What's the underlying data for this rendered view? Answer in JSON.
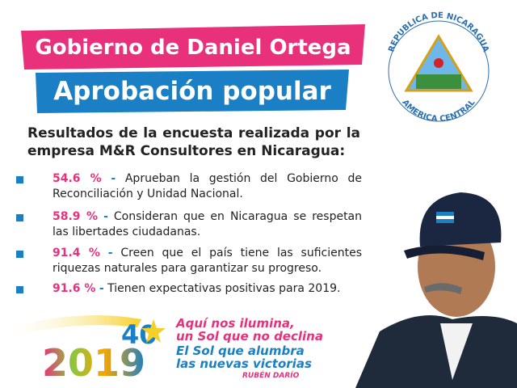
{
  "header": {
    "title": "Gobierno de Daniel Ortega",
    "subtitle": "Aprobación popular"
  },
  "intro": "Resultados de la encuesta realizada por la empresa M&R Consultores en Nicaragua:",
  "items": [
    {
      "percent": "54.6 %",
      "separator": "-",
      "text": "Aprueban la gestión del Gobierno de Reconciliación y Unidad Nacional."
    },
    {
      "percent": "58.9 %",
      "separator": "-",
      "text": "Consideran que en Nicaragua se respetan las libertades ciudadanas."
    },
    {
      "percent": "91.4 %",
      "separator": "-",
      "text": "Creen que el país tiene las suficientes riquezas naturales para garantizar su progreso."
    },
    {
      "percent": "91.6 %",
      "separator": "-",
      "text": "Tienen expectativas positivas para 2019."
    }
  ],
  "seal": {
    "top": "REPUBLICA DE NICARAGUA",
    "bottom": "AMERICA CENTRAL"
  },
  "footer": {
    "year": "2019",
    "anniversary": "40",
    "quote": [
      "Aquí nos ilumina,",
      "un Sol que no declina",
      "El Sol que alumbra",
      "las nuevas victorias"
    ],
    "author": "RUBÉN DARÍO"
  }
}
